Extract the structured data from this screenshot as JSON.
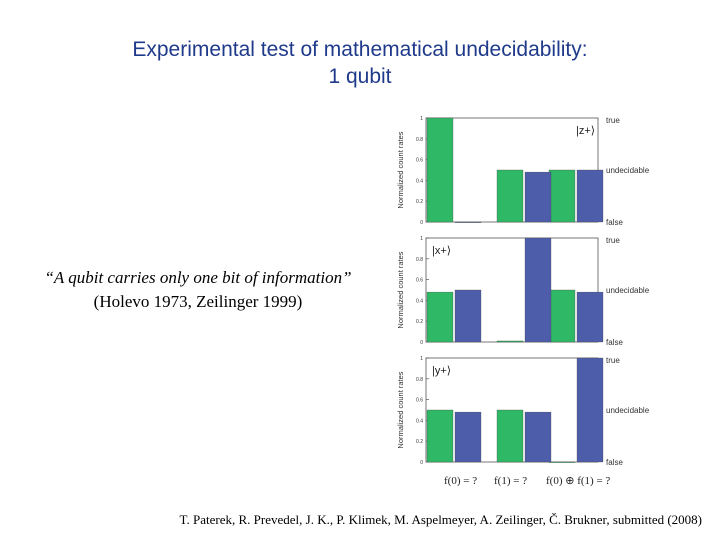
{
  "title": {
    "line1": "Experimental test of mathematical undecidability:",
    "line2": "1 qubit"
  },
  "quote": {
    "text": "“A qubit carries only one bit of information”",
    "citation": "(Holevo 1973, Zeilinger 1999)"
  },
  "reference": "T. Paterek, R. Prevedel, J. K., P. Klimek, M. Aspelmeyer, A. Zeilinger, Č. Brukner, submitted (2008)",
  "colors": {
    "green": "#2fb866",
    "blue": "#4d5daa",
    "panel_bg": "#ffffff"
  },
  "chart_data": [
    {
      "type": "bar",
      "state_label": "|z+⟩",
      "ylabel": "Normalized count rates",
      "yticks": [
        "0",
        "0.2",
        "0.4",
        "0.6",
        "0.8",
        "1"
      ],
      "ylim": [
        0,
        1
      ],
      "right_labels": [
        "true",
        "undecidable",
        "false"
      ],
      "categories": [
        "f(0) = ?",
        "f(1) = ?",
        "f(0) ⊕ f(1) = ?"
      ],
      "series": [
        {
          "values": [
            1.0,
            0.5,
            0.5
          ]
        },
        {
          "values": [
            0.0,
            0.48,
            0.5
          ]
        }
      ]
    },
    {
      "type": "bar",
      "state_label": "|x+⟩",
      "ylabel": "Normalized count rates",
      "yticks": [
        "0",
        "0.2",
        "0.4",
        "0.6",
        "0.8",
        "1"
      ],
      "ylim": [
        0,
        1
      ],
      "right_labels": [
        "true",
        "undecidable",
        "false"
      ],
      "categories": [
        "f(0) = ?",
        "f(1) = ?",
        "f(0) ⊕ f(1) = ?"
      ],
      "series": [
        {
          "values": [
            0.48,
            0.01,
            0.5
          ]
        },
        {
          "values": [
            0.5,
            1.0,
            0.48
          ]
        }
      ]
    },
    {
      "type": "bar",
      "state_label": "|y+⟩",
      "ylabel": "Normalized count rates",
      "yticks": [
        "0",
        "0.2",
        "0.4",
        "0.6",
        "0.8",
        "1"
      ],
      "ylim": [
        0,
        1
      ],
      "right_labels": [
        "true",
        "undecidable",
        "false"
      ],
      "categories": [
        "f(0) = ?",
        "f(1) = ?",
        "f(0) ⊕ f(1) = ?"
      ],
      "series": [
        {
          "values": [
            0.5,
            0.5,
            0.0
          ]
        },
        {
          "values": [
            0.48,
            0.48,
            1.0
          ]
        }
      ]
    }
  ]
}
